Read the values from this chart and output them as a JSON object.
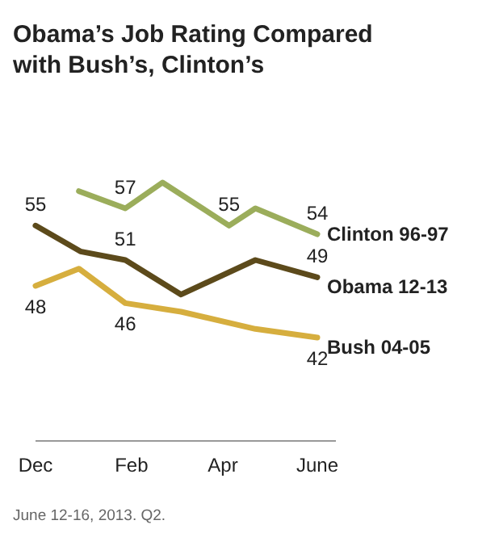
{
  "chart_data": {
    "type": "line",
    "title": "Obama’s Job Rating Compared with Bush’s, Clinton’s",
    "xlim": [
      "2012-12-01",
      "2013-06-13"
    ],
    "xticks": [
      {
        "value": "2012-12-01",
        "label": "Dec"
      },
      {
        "value": "2013-02-01",
        "label": "Feb"
      },
      {
        "value": "2013-04-01",
        "label": "Apr"
      },
      {
        "value": "2013-06-01",
        "label": "June"
      }
    ],
    "tick_labels": "x",
    "legend": false,
    "series": [
      {
        "name": "Clinton 96-97",
        "color": "#9bad5b",
        "x": [
          "2012-12-29",
          "2013-01-28",
          "2013-02-21",
          "2013-04-05",
          "2013-04-22",
          "2013-06-01"
        ],
        "values": [
          59,
          57,
          60,
          55,
          57,
          54
        ],
        "value_labels": [
          null,
          "57",
          null,
          "55",
          null,
          "54"
        ]
      },
      {
        "name": "Obama 12-13",
        "color": "#5c4a1b",
        "x": [
          "2012-12-01",
          "2012-12-30",
          "2013-01-28",
          "2013-03-05",
          "2013-04-22",
          "2013-06-01"
        ],
        "values": [
          55,
          52,
          51,
          47,
          51,
          49
        ],
        "value_labels": [
          "55",
          null,
          "51",
          null,
          null,
          "49"
        ]
      },
      {
        "name": "Bush 04-05",
        "color": "#d6ae3e",
        "x": [
          "2012-12-01",
          "2012-12-29",
          "2013-01-28",
          "2013-03-05",
          "2013-04-22",
          "2013-06-01"
        ],
        "values": [
          48,
          50,
          46,
          45,
          43,
          42
        ],
        "value_labels": [
          "48",
          null,
          "46",
          null,
          null,
          "42"
        ]
      }
    ],
    "annotations": [
      "June 12-16, 2013. Q2."
    ]
  }
}
